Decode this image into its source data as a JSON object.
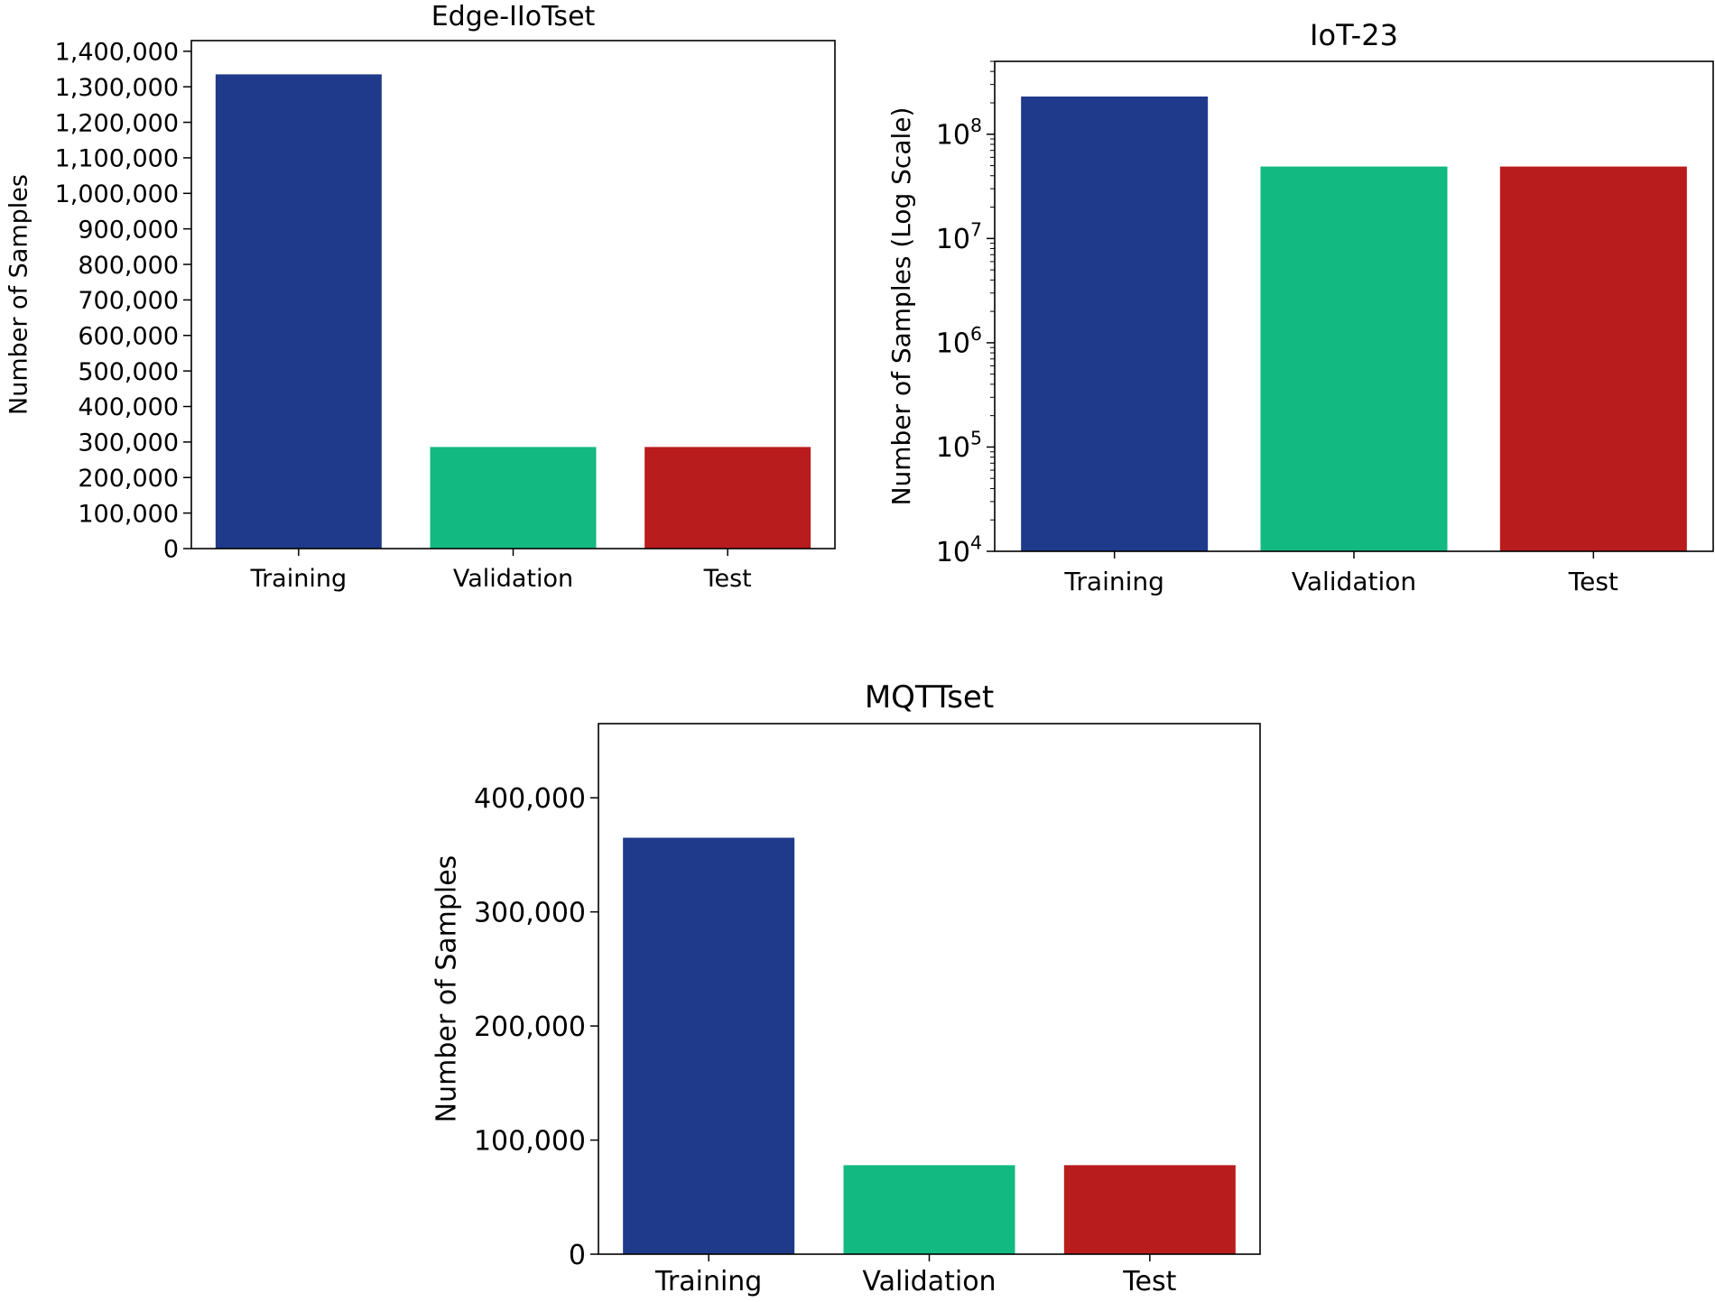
{
  "chart_data": [
    {
      "id": "edge",
      "type": "bar",
      "title": "Edge-IIoTset",
      "xlabel": "",
      "ylabel": "Number of Samples",
      "scale": "linear",
      "ylim": [
        0,
        1430000
      ],
      "yticks": [
        0,
        100000,
        200000,
        300000,
        400000,
        500000,
        600000,
        700000,
        800000,
        900000,
        1000000,
        1100000,
        1200000,
        1300000,
        1400000
      ],
      "ytick_labels": [
        "0",
        "100,000",
        "200,000",
        "300,000",
        "400,000",
        "500,000",
        "600,000",
        "700,000",
        "800,000",
        "900,000",
        "1,000,000",
        "1,100,000",
        "1,200,000",
        "1,300,000",
        "1,400,000"
      ],
      "categories": [
        "Training",
        "Validation",
        "Test"
      ],
      "values": [
        1335000,
        286000,
        286000
      ],
      "colors": [
        "#1f3a8a",
        "#12b981",
        "#b91c1c"
      ]
    },
    {
      "id": "iot23",
      "type": "bar",
      "title": "IoT-23",
      "xlabel": "",
      "ylabel": "Number of Samples (Log Scale)",
      "scale": "log",
      "ylim": [
        10000,
        500000000
      ],
      "yticks": [
        10000,
        100000,
        1000000,
        10000000,
        100000000
      ],
      "ytick_labels": [
        "10",
        "10",
        "10",
        "10",
        "10"
      ],
      "ytick_exponents": [
        "4",
        "5",
        "6",
        "7",
        "8"
      ],
      "categories": [
        "Training",
        "Validation",
        "Test"
      ],
      "values": [
        230000000,
        49000000,
        49000000
      ],
      "colors": [
        "#1f3a8a",
        "#12b981",
        "#b91c1c"
      ]
    },
    {
      "id": "mqtt",
      "type": "bar",
      "title": "MQTTset",
      "xlabel": "",
      "ylabel": "Number of Samples",
      "scale": "linear",
      "ylim": [
        0,
        465000
      ],
      "yticks": [
        0,
        100000,
        200000,
        300000,
        400000
      ],
      "ytick_labels": [
        "0",
        "100,000",
        "200,000",
        "300,000",
        "400,000"
      ],
      "categories": [
        "Training",
        "Validation",
        "Test"
      ],
      "values": [
        365000,
        78000,
        78000
      ],
      "colors": [
        "#1f3a8a",
        "#12b981",
        "#b91c1c"
      ]
    }
  ]
}
